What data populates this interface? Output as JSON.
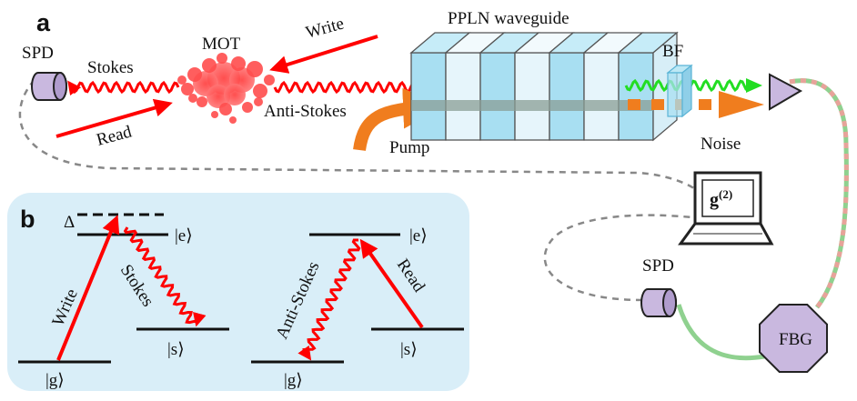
{
  "panel_a": {
    "letter": "a",
    "labels": {
      "spd_top": "SPD",
      "stokes": "Stokes",
      "mot": "MOT",
      "write": "Write",
      "ppln": "PPLN waveguide",
      "bf": "BF",
      "read": "Read",
      "anti_stokes": "Anti-Stokes",
      "pump": "Pump",
      "noise": "Noise",
      "g2_base": "g",
      "g2_sup": "(2)",
      "spd_bottom": "SPD",
      "fbg": "FBG"
    }
  },
  "panel_b": {
    "letter": "b",
    "labels": {
      "delta": "Δ",
      "e_left": "|e⟩",
      "s_left": "|s⟩",
      "g_left": "|g⟩",
      "write": "Write",
      "stokes": "Stokes",
      "e_right": "|e⟩",
      "s_right": "|s⟩",
      "g_right": "|g⟩",
      "anti_stokes": "Anti-Stokes",
      "read": "Read"
    }
  },
  "colors": {
    "red": "#ff0000",
    "green": "#22dd22",
    "orange": "#f07d1e",
    "lavender": "#c9b8df",
    "panel_bg": "#d9eef8",
    "waveguide": "#a8dff2",
    "fiber_green": "#8fd18f",
    "fiber_pink": "#e7a39a"
  }
}
